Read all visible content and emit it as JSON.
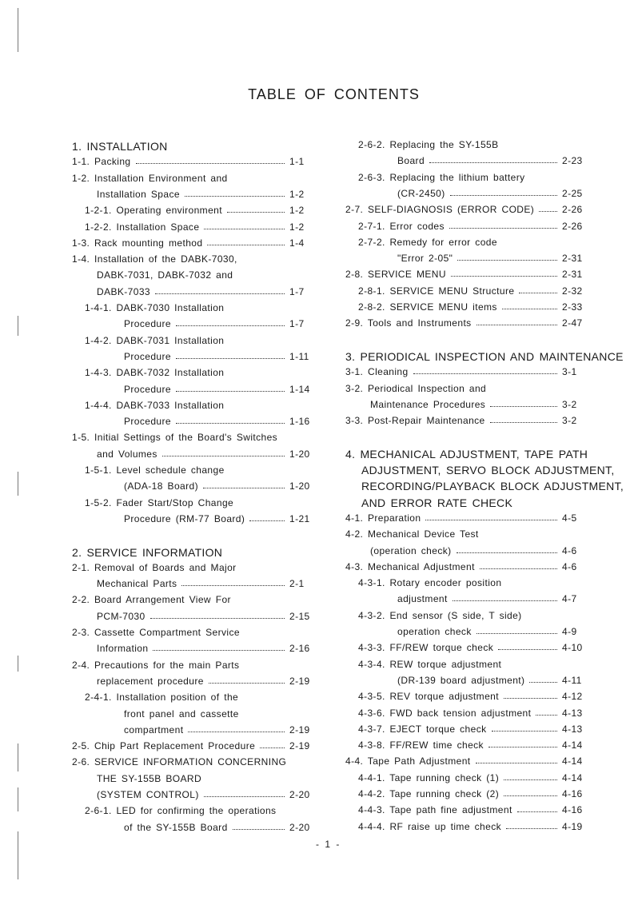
{
  "title": "TABLE OF CONTENTS",
  "footer": "- 1 -",
  "left_column": [
    {
      "text": "1. INSTALLATION",
      "head": true,
      "x": 0
    },
    {
      "text": "1-1. Packing",
      "page": "1-1",
      "x": 0
    },
    {
      "text": "1-2. Installation Environment and",
      "x": 0
    },
    {
      "text": "Installation Space",
      "page": "1-2",
      "x": 1
    },
    {
      "text": "1-2-1. Operating environment",
      "page": "1-2",
      "x": 2
    },
    {
      "text": "1-2-2. Installation Space",
      "page": "1-2",
      "x": 2
    },
    {
      "text": "1-3. Rack mounting method",
      "page": "1-4",
      "x": 0
    },
    {
      "text": "1-4. Installation of the DABK-7030,",
      "x": 0
    },
    {
      "text": "DABK-7031, DABK-7032 and",
      "x": 1
    },
    {
      "text": "DABK-7033",
      "page": "1-7",
      "x": 1
    },
    {
      "text": "1-4-1. DABK-7030 Installation",
      "x": 2
    },
    {
      "text": "Procedure",
      "page": "1-7",
      "x": 3
    },
    {
      "text": "1-4-2. DABK-7031 Installation",
      "x": 2
    },
    {
      "text": "Procedure",
      "page": "1-11",
      "x": 3
    },
    {
      "text": "1-4-3. DABK-7032 Installation",
      "x": 2
    },
    {
      "text": "Procedure",
      "page": "1-14",
      "x": 3
    },
    {
      "text": "1-4-4. DABK-7033 Installation",
      "x": 2
    },
    {
      "text": "Procedure",
      "page": "1-16",
      "x": 3
    },
    {
      "text": "1-5. Initial Settings of the Board's Switches",
      "x": 0
    },
    {
      "text": "and Volumes",
      "page": "1-20",
      "x": 1
    },
    {
      "text": "1-5-1. Level schedule change",
      "x": 2
    },
    {
      "text": "(ADA-18 Board)",
      "page": "1-20",
      "x": 3
    },
    {
      "text": "1-5-2. Fader Start/Stop Change",
      "x": 2
    },
    {
      "text": "Procedure (RM-77 Board)",
      "page": "1-21",
      "x": 3
    },
    {
      "blank": true
    },
    {
      "text": "2. SERVICE INFORMATION",
      "head": true,
      "x": 0
    },
    {
      "text": "2-1. Removal of Boards and Major",
      "x": 0
    },
    {
      "text": "Mechanical Parts",
      "page": "2-1",
      "x": 1
    },
    {
      "text": "2-2. Board Arrangement View For",
      "x": 0
    },
    {
      "text": "PCM-7030",
      "page": "2-15",
      "x": 1
    },
    {
      "text": "2-3. Cassette Compartment Service",
      "x": 0
    },
    {
      "text": "Information",
      "page": "2-16",
      "x": 1
    },
    {
      "text": "2-4. Precautions for the main Parts",
      "x": 0
    },
    {
      "text": "replacement procedure",
      "page": "2-19",
      "x": 1
    },
    {
      "text": "2-4-1. Installation position of the",
      "x": 2
    },
    {
      "text": "front panel and cassette",
      "x": 3
    },
    {
      "text": "compartment",
      "page": "2-19",
      "x": 3
    },
    {
      "text": "2-5. Chip Part Replacement Procedure",
      "page": "2-19",
      "x": 0
    },
    {
      "text": "2-6. SERVICE INFORMATION CONCERNING",
      "x": 0
    },
    {
      "text": "THE SY-155B BOARD",
      "x": 1
    },
    {
      "text": "(SYSTEM CONTROL)",
      "page": "2-20",
      "x": 1
    },
    {
      "text": "2-6-1. LED for confirming the operations",
      "x": 2
    },
    {
      "text": "of the SY-155B Board",
      "page": "2-20",
      "x": 3
    }
  ],
  "right_column": [
    {
      "text": "2-6-2. Replacing the SY-155B",
      "x": 2
    },
    {
      "text": "Board",
      "page": "2-23",
      "x": 3
    },
    {
      "text": "2-6-3. Replacing the lithium battery",
      "x": 2
    },
    {
      "text": "(CR-2450)",
      "page": "2-25",
      "x": 3
    },
    {
      "text": "2-7. SELF-DIAGNOSIS (ERROR CODE)",
      "page": "2-26",
      "x": 0
    },
    {
      "text": "2-7-1. Error codes",
      "page": "2-26",
      "x": 2
    },
    {
      "text": "2-7-2. Remedy for error code",
      "x": 2
    },
    {
      "text": "\"Error 2-05\"",
      "page": "2-31",
      "x": 3
    },
    {
      "text": "2-8. SERVICE MENU",
      "page": "2-31",
      "x": 0
    },
    {
      "text": "2-8-1. SERVICE MENU Structure",
      "page": "2-32",
      "x": 2
    },
    {
      "text": "2-8-2. SERVICE MENU items",
      "page": "2-33",
      "x": 2
    },
    {
      "text": "2-9. Tools and Instruments",
      "page": "2-47",
      "x": 0
    },
    {
      "blank": true
    },
    {
      "text": "3. PERIODICAL INSPECTION AND MAINTENANCE",
      "head": true,
      "x": 0
    },
    {
      "text": "3-1. Cleaning",
      "page": "3-1",
      "x": 0
    },
    {
      "text": "3-2. Periodical Inspection and",
      "x": 0
    },
    {
      "text": "Maintenance Procedures",
      "page": "3-2",
      "x": 1
    },
    {
      "text": "3-3. Post-Repair Maintenance",
      "page": "3-2",
      "x": 0
    },
    {
      "blank": true
    },
    {
      "text": "4. MECHANICAL ADJUSTMENT, TAPE PATH",
      "head": true,
      "x": 0
    },
    {
      "text": "ADJUSTMENT, SERVO BLOCK ADJUSTMENT,",
      "head": true,
      "x": 4
    },
    {
      "text": "RECORDING/PLAYBACK BLOCK ADJUSTMENT,",
      "head": true,
      "x": 4
    },
    {
      "text": "AND ERROR RATE CHECK",
      "head": true,
      "x": 4
    },
    {
      "text": "4-1. Preparation",
      "page": "4-5",
      "x": 0
    },
    {
      "text": "4-2. Mechanical Device Test",
      "x": 0
    },
    {
      "text": "(operation check)",
      "page": "4-6",
      "x": 1
    },
    {
      "text": "4-3. Mechanical Adjustment",
      "page": "4-6",
      "x": 0
    },
    {
      "text": "4-3-1. Rotary encoder position",
      "x": 2
    },
    {
      "text": "adjustment",
      "page": "4-7",
      "x": 3
    },
    {
      "text": "4-3-2. End sensor (S side, T side)",
      "x": 2
    },
    {
      "text": "operation check",
      "page": "4-9",
      "x": 3
    },
    {
      "text": "4-3-3. FF/REW torque check",
      "page": "4-10",
      "x": 2
    },
    {
      "text": "4-3-4. REW torque adjustment",
      "x": 2
    },
    {
      "text": "(DR-139 board adjustment)",
      "page": "4-11",
      "x": 3
    },
    {
      "text": "4-3-5. REV torque adjustment",
      "page": "4-12",
      "x": 2
    },
    {
      "text": "4-3-6. FWD back tension adjustment",
      "page": "4-13",
      "x": 2
    },
    {
      "text": "4-3-7. EJECT torque check",
      "page": "4-13",
      "x": 2
    },
    {
      "text": "4-3-8. FF/REW time check",
      "page": "4-14",
      "x": 2
    },
    {
      "text": "4-4. Tape Path Adjustment",
      "page": "4-14",
      "x": 0
    },
    {
      "text": "4-4-1. Tape running check (1)",
      "page": "4-14",
      "x": 2
    },
    {
      "text": "4-4-2. Tape running check (2)",
      "page": "4-16",
      "x": 2
    },
    {
      "text": "4-4-3. Tape path fine adjustment",
      "page": "4-16",
      "x": 2
    },
    {
      "text": "4-4-4. RF raise up time check",
      "page": "4-19",
      "x": 2
    }
  ]
}
